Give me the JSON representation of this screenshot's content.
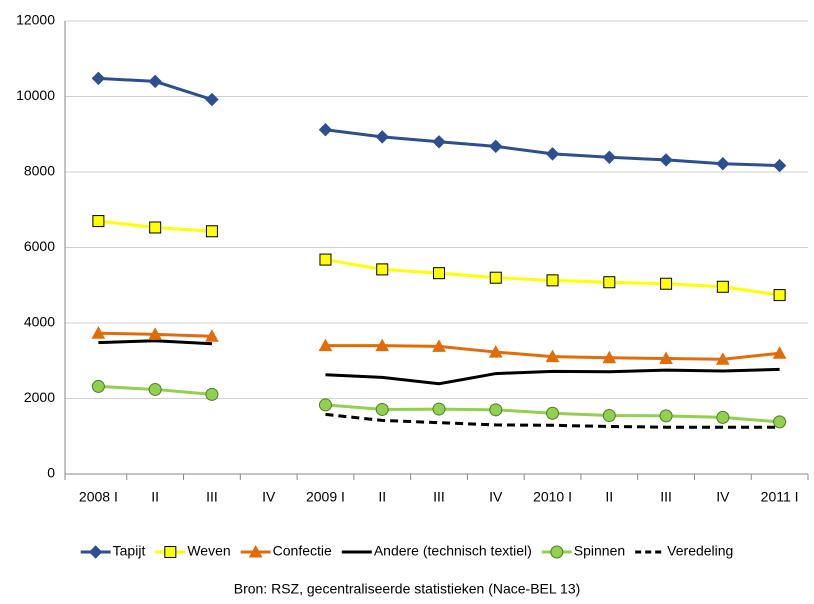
{
  "chart_data": {
    "type": "line",
    "source": "Bron: RSZ, gecentraliseerde statistieken (Nace-BEL 13)",
    "categories": [
      "2008 I",
      "II",
      "III",
      "IV",
      "2009 I",
      "II",
      "III",
      "IV",
      "2010 I",
      "II",
      "III",
      "IV",
      "2011 I"
    ],
    "series": [
      {
        "name": "Tapijt",
        "color": "#2e4f8f",
        "marker": "diamond",
        "marker_fill": "#2e4f8f",
        "marker_edge": "#2e4f8f",
        "dashed": false,
        "values": [
          10480,
          10400,
          9920,
          null,
          9120,
          8930,
          8800,
          8680,
          8480,
          8390,
          8320,
          8220,
          8170
        ]
      },
      {
        "name": "Weven",
        "color": "#ffff00",
        "marker": "square",
        "marker_fill": "#ffff00",
        "marker_edge": "#000000",
        "dashed": false,
        "values": [
          6700,
          6530,
          6430,
          null,
          5680,
          5420,
          5320,
          5200,
          5130,
          5080,
          5040,
          4960,
          4740
        ]
      },
      {
        "name": "Confectie",
        "color": "#e36c0a",
        "marker": "triangle",
        "marker_fill": "#e36c0a",
        "marker_edge": "#e36c0a",
        "dashed": false,
        "values": [
          3730,
          3700,
          3650,
          null,
          3400,
          3400,
          3380,
          3230,
          3110,
          3080,
          3060,
          3040,
          3200
        ]
      },
      {
        "name": "Andere (technisch textiel)",
        "color": "#000000",
        "marker": "none",
        "marker_fill": "#000000",
        "marker_edge": "#000000",
        "dashed": false,
        "values": [
          3480,
          3530,
          3450,
          null,
          2630,
          2560,
          2390,
          2660,
          2720,
          2710,
          2750,
          2730,
          2770
        ]
      },
      {
        "name": "Spinnen",
        "color": "#92d050",
        "marker": "circle",
        "marker_fill": "#92d050",
        "marker_edge": "#4f7a28",
        "dashed": false,
        "values": [
          2320,
          2240,
          2110,
          null,
          1830,
          1710,
          1720,
          1700,
          1610,
          1550,
          1540,
          1500,
          1380
        ]
      },
      {
        "name": "Veredeling",
        "color": "#000000",
        "marker": "none",
        "marker_fill": "#000000",
        "marker_edge": "#000000",
        "dashed": true,
        "values": [
          null,
          null,
          null,
          null,
          1580,
          1420,
          1360,
          1300,
          1290,
          1260,
          1240,
          1240,
          1240
        ]
      }
    ],
    "ylim": [
      0,
      12000
    ],
    "yticks": [
      0,
      2000,
      4000,
      6000,
      8000,
      10000,
      12000
    ],
    "grid": true,
    "legend": "bottom"
  }
}
